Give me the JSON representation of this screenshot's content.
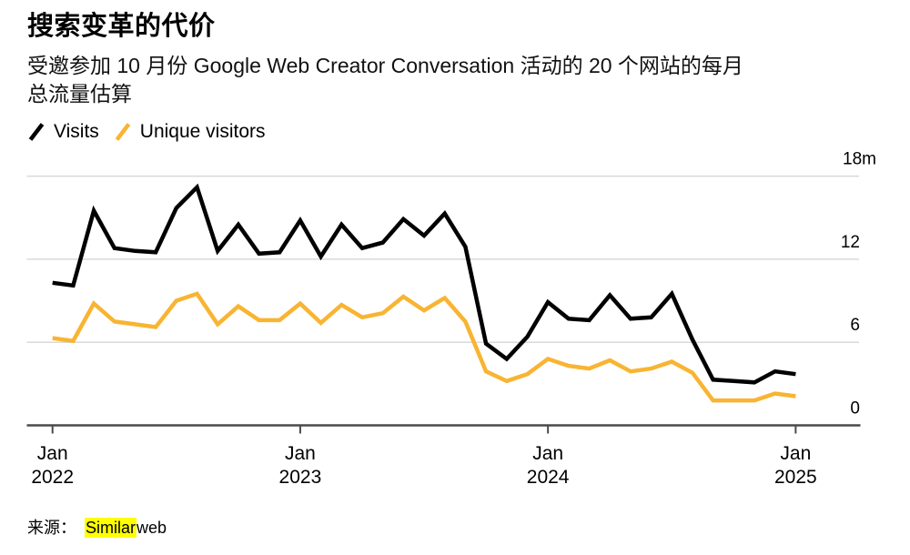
{
  "header": {
    "title": "搜索变革的代价",
    "subtitle_line1": "受邀参加 10 月份 Google Web Creator Conversation 活动的 20 个网站的每月",
    "subtitle_line2": "总流量估算"
  },
  "legend": {
    "items": [
      {
        "label": "Visits",
        "color": "#000000"
      },
      {
        "label": "Unique visitors",
        "color": "#F8B432"
      }
    ]
  },
  "source": {
    "prefix": "来源：",
    "highlight": "Similar",
    "rest": "web"
  },
  "chart_data": {
    "type": "line",
    "title": "搜索变革的代价",
    "subtitle": "受邀参加 10 月份 Google Web Creator Conversation 活动的 20 个网站的每月总流量估算",
    "unit": "millions",
    "ylim": [
      0,
      18
    ],
    "grid": true,
    "legend_position": "top-left",
    "x": [
      "2022-01",
      "2022-02",
      "2022-03",
      "2022-04",
      "2022-05",
      "2022-06",
      "2022-07",
      "2022-08",
      "2022-09",
      "2022-10",
      "2022-11",
      "2022-12",
      "2023-01",
      "2023-02",
      "2023-03",
      "2023-04",
      "2023-05",
      "2023-06",
      "2023-07",
      "2023-08",
      "2023-09",
      "2023-10",
      "2023-11",
      "2023-12",
      "2024-01",
      "2024-02",
      "2024-03",
      "2024-04",
      "2024-05",
      "2024-06",
      "2024-07",
      "2024-08",
      "2024-09",
      "2024-10",
      "2024-11",
      "2024-12",
      "2025-01"
    ],
    "series": [
      {
        "name": "Visits",
        "color": "#000000",
        "values": [
          10.3,
          10.1,
          15.5,
          12.8,
          12.6,
          12.5,
          15.7,
          17.2,
          12.6,
          14.5,
          12.4,
          12.5,
          14.8,
          12.2,
          14.5,
          12.8,
          13.2,
          14.9,
          13.7,
          15.3,
          12.9,
          5.9,
          4.8,
          6.4,
          8.9,
          7.7,
          7.6,
          9.4,
          7.7,
          7.8,
          9.5,
          6.2,
          3.3,
          3.2,
          3.1,
          3.9,
          3.7
        ]
      },
      {
        "name": "Unique visitors",
        "color": "#F8B432",
        "values": [
          6.3,
          6.1,
          8.8,
          7.5,
          7.3,
          7.1,
          9.0,
          9.5,
          7.3,
          8.6,
          7.6,
          7.6,
          8.8,
          7.4,
          8.7,
          7.8,
          8.1,
          9.3,
          8.3,
          9.2,
          7.5,
          3.9,
          3.2,
          3.7,
          4.8,
          4.3,
          4.1,
          4.7,
          3.9,
          4.1,
          4.6,
          3.8,
          1.8,
          1.8,
          1.8,
          2.3,
          2.1
        ]
      }
    ],
    "yticks": [
      {
        "value": 0,
        "label": "0"
      },
      {
        "value": 6,
        "label": "6"
      },
      {
        "value": 12,
        "label": "12"
      },
      {
        "value": 18,
        "label": "18m"
      }
    ],
    "xticks": [
      {
        "index": 0,
        "line1": "Jan",
        "line2": "2022"
      },
      {
        "index": 12,
        "line1": "Jan",
        "line2": "2023"
      },
      {
        "index": 24,
        "line1": "Jan",
        "line2": "2024"
      },
      {
        "index": 36,
        "line1": "Jan",
        "line2": "2025"
      }
    ],
    "style": {
      "grid_color": "#D9D9D9",
      "axis_color": "#4A4A4A",
      "highlight_color": "#FFFF00"
    }
  }
}
